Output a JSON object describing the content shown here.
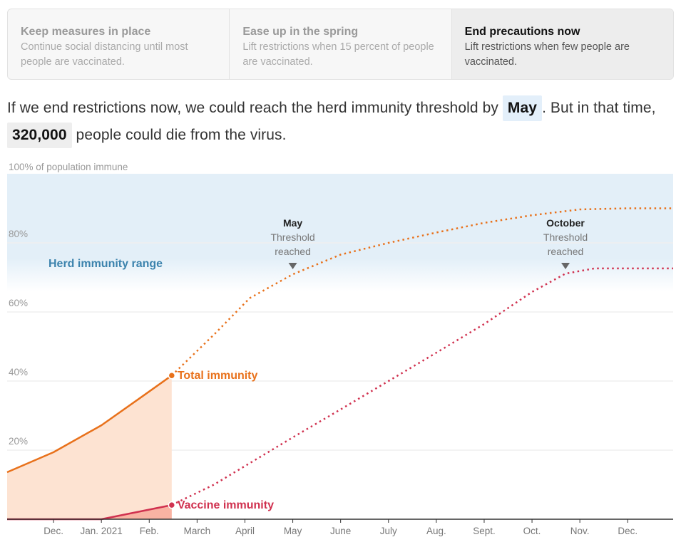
{
  "tabs": [
    {
      "title": "Keep measures in place",
      "desc": "Continue social distancing until most people are vaccinated.",
      "active": false
    },
    {
      "title": "Ease up in the spring",
      "desc": "Lift restrictions when 15 percent of people are vaccinated.",
      "active": false
    },
    {
      "title": "End precautions now",
      "desc": "Lift restrictions when few people are vaccinated.",
      "active": true
    }
  ],
  "summary": {
    "part1": "If we end restrictions now, we could reach the herd immunity threshold by ",
    "threshold_month": "May",
    "part2": ". But in that time, ",
    "deaths": "320,000",
    "part3": " people could die from the virus."
  },
  "colors": {
    "total": "#e8711b",
    "total_fill": "#fde3d2",
    "vaccine": "#d0314f",
    "vaccine_fill": "#f9b3a3",
    "herd_band": "#e3eff8",
    "herd_label": "#3c83ad",
    "axis": "#333333",
    "grid": "#efefef"
  },
  "chart_data": {
    "type": "line",
    "title": "",
    "ylabel": "100% of population immune",
    "ylim": [
      0,
      100
    ],
    "yticks": [
      {
        "value": 20,
        "label": "20%"
      },
      {
        "value": 40,
        "label": "40%"
      },
      {
        "value": 60,
        "label": "60%"
      },
      {
        "value": 80,
        "label": "80%"
      }
    ],
    "y_top_label": "100% of population immune",
    "x_unit": "months since Dec. 1, 2020",
    "xlim": [
      -0.97,
      12.95
    ],
    "xticks": [
      {
        "value": 0,
        "label": "Dec."
      },
      {
        "value": 1,
        "label": "Jan. 2021"
      },
      {
        "value": 2,
        "label": "Feb."
      },
      {
        "value": 3,
        "label": "March"
      },
      {
        "value": 4,
        "label": "April"
      },
      {
        "value": 5,
        "label": "May"
      },
      {
        "value": 6,
        "label": "June"
      },
      {
        "value": 7,
        "label": "July"
      },
      {
        "value": 8,
        "label": "Aug."
      },
      {
        "value": 9,
        "label": "Sept."
      },
      {
        "value": 10,
        "label": "Oct."
      },
      {
        "value": 11,
        "label": "Nov."
      },
      {
        "value": 12,
        "label": "Dec."
      }
    ],
    "today_x": 2.47,
    "herd_range": {
      "label": "Herd immunity range",
      "from": 70,
      "to": 100
    },
    "series": [
      {
        "name": "Total immunity",
        "observed": [
          [
            -0.97,
            13.6
          ],
          [
            0,
            19.4
          ],
          [
            1,
            27.2
          ],
          [
            1.85,
            35.5
          ],
          [
            2.47,
            41.6
          ]
        ],
        "projected": [
          [
            2.47,
            41.6
          ],
          [
            3.35,
            53.4
          ],
          [
            4.1,
            64.0
          ],
          [
            5,
            70.9
          ],
          [
            6,
            76.6
          ],
          [
            7,
            80.0
          ],
          [
            8,
            83.0
          ],
          [
            9,
            85.8
          ],
          [
            10,
            88.0
          ],
          [
            11,
            89.7
          ],
          [
            12,
            90.0
          ],
          [
            12.95,
            90.0
          ]
        ]
      },
      {
        "name": "Vaccine immunity",
        "observed": [
          [
            -0.97,
            0
          ],
          [
            1,
            0
          ],
          [
            2.47,
            4.1
          ]
        ],
        "projected": [
          [
            2.47,
            4.1
          ],
          [
            3.35,
            10.0
          ],
          [
            5,
            23.7
          ],
          [
            6,
            31.8
          ],
          [
            7,
            40.0
          ],
          [
            8,
            48.2
          ],
          [
            9,
            56.5
          ],
          [
            10,
            65.8
          ],
          [
            10.7,
            71.1
          ],
          [
            11.3,
            72.6
          ],
          [
            12.95,
            72.6
          ]
        ]
      }
    ],
    "annotations": [
      {
        "x": 5,
        "y": 70.9,
        "title": "May",
        "line1": "Threshold",
        "line2": "reached"
      },
      {
        "x": 10.7,
        "y": 71.1,
        "title": "October",
        "line1": "Threshold",
        "line2": "reached"
      }
    ]
  }
}
